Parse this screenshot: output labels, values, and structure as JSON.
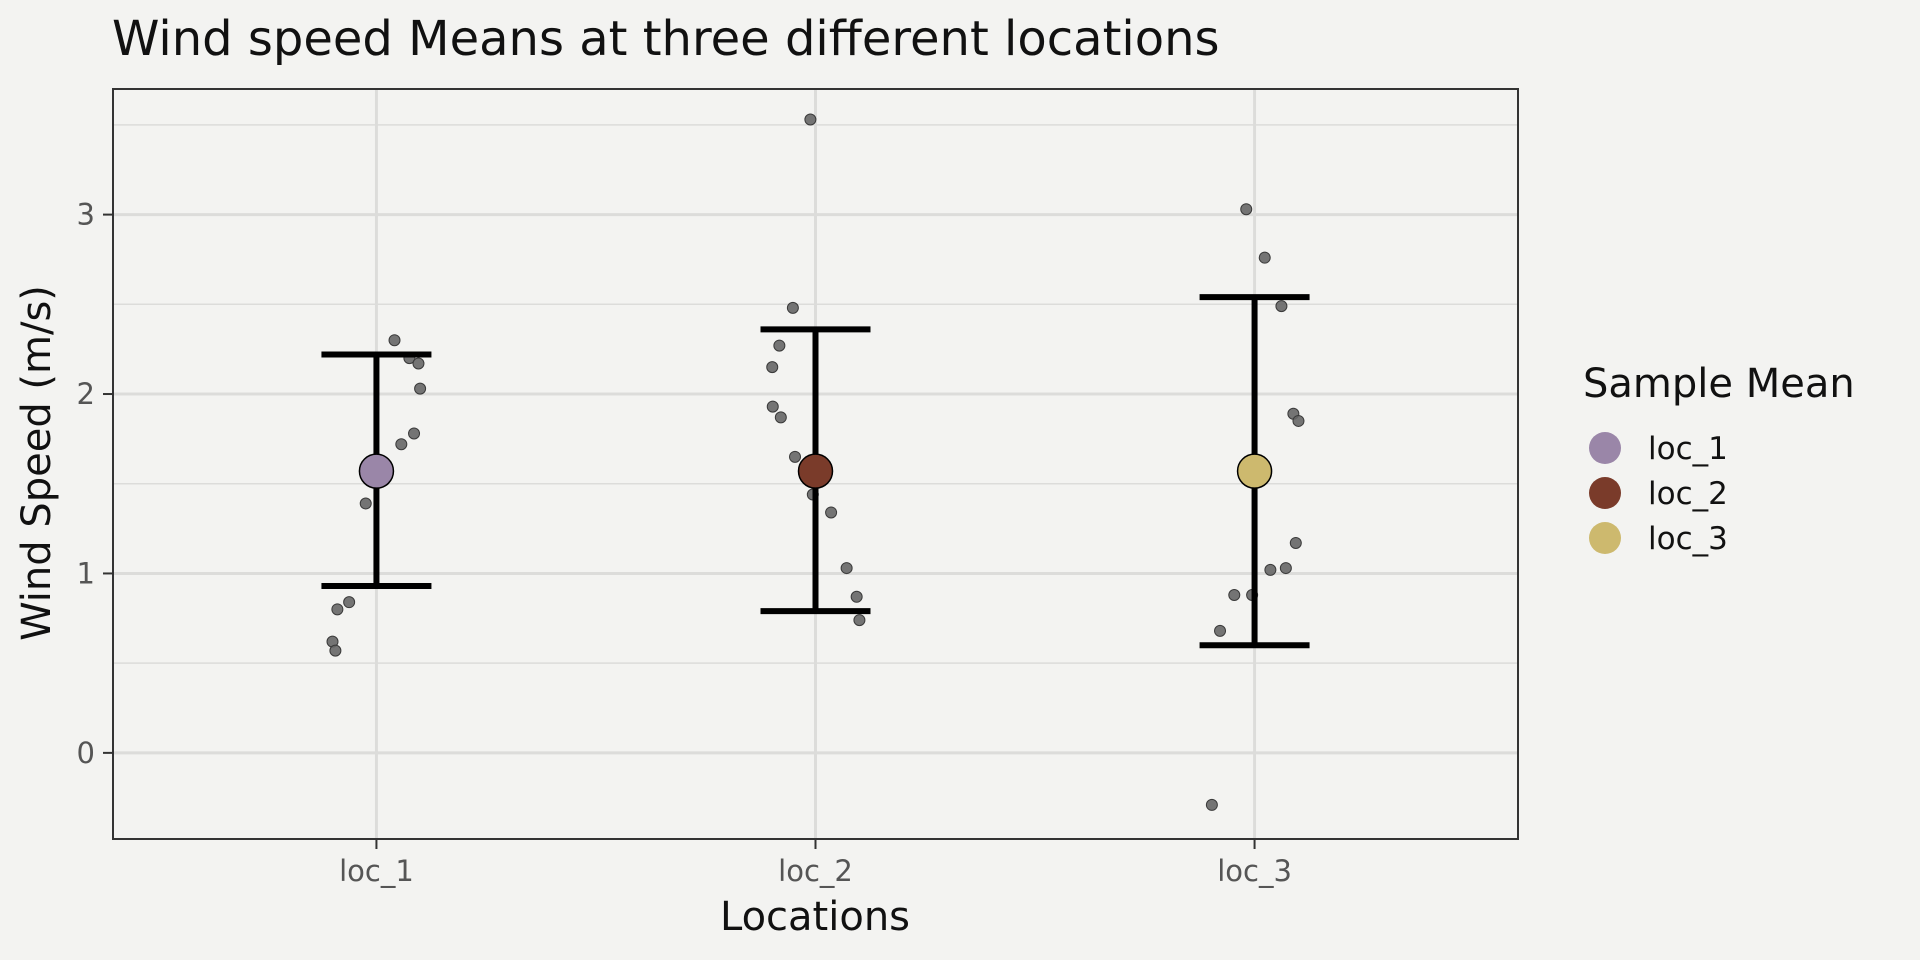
{
  "chart_data": {
    "type": "scatter",
    "title": "Wind speed Means at three different locations",
    "xlabel": "Locations",
    "ylabel": "Wind Speed (m/s)",
    "categories": [
      "loc_1",
      "loc_2",
      "loc_3"
    ],
    "ylim": [
      -0.48,
      3.7
    ],
    "yticks": [
      0,
      1,
      2,
      3
    ],
    "grid": true,
    "legend": {
      "title": "Sample Mean",
      "placement": "right",
      "items": [
        "loc_1",
        "loc_2",
        "loc_3"
      ]
    },
    "colors": {
      "loc_1": "#9a86a8",
      "loc_2": "#7a3b2a",
      "loc_3": "#cdb96e",
      "points": "#666666",
      "errorbar": "#000000",
      "panel": "#f3f3f1",
      "grid": "#dcdcda"
    },
    "means": [
      {
        "category": "loc_1",
        "mean": 1.57,
        "lower": 0.93,
        "upper": 2.22
      },
      {
        "category": "loc_2",
        "mean": 1.57,
        "lower": 0.79,
        "upper": 2.36
      },
      {
        "category": "loc_3",
        "mean": 1.57,
        "lower": 0.6,
        "upper": 2.54
      }
    ],
    "observations": [
      {
        "category": "loc_1",
        "values": [
          2.3,
          2.2,
          2.17,
          2.03,
          1.78,
          1.72,
          1.52,
          1.39,
          0.84,
          0.8,
          0.62,
          0.57
        ]
      },
      {
        "category": "loc_2",
        "values": [
          3.53,
          2.48,
          2.27,
          2.15,
          1.93,
          1.87,
          1.65,
          1.44,
          1.34,
          1.03,
          0.87,
          0.74
        ]
      },
      {
        "category": "loc_3",
        "values": [
          3.03,
          2.76,
          2.49,
          1.89,
          1.85,
          1.17,
          1.03,
          1.02,
          0.88,
          0.88,
          0.68,
          -0.29
        ]
      }
    ]
  }
}
